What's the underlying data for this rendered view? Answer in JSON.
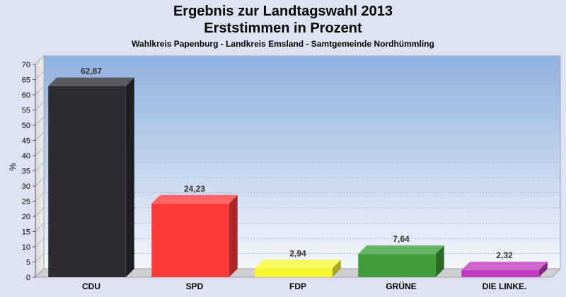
{
  "chart_data": {
    "type": "bar",
    "title": "Ergebnis zur Landtagswahl 2013",
    "subtitle": "Erststimmen in Prozent",
    "subsubtitle": "Wahlkreis Papenburg - Landkreis Emsland - Samtgemeinde Nordhümmling",
    "ylabel": "%",
    "xlabel": "",
    "ylim": [
      0,
      70
    ],
    "yticks": [
      0,
      5,
      10,
      15,
      20,
      25,
      30,
      35,
      40,
      45,
      50,
      55,
      60,
      65,
      70
    ],
    "grid": true,
    "categories": [
      "CDU",
      "SPD",
      "FDP",
      "GRÜNE",
      "DIE LINKE."
    ],
    "values": [
      62.87,
      24.23,
      2.94,
      7.64,
      2.32
    ],
    "value_labels": [
      "62,87",
      "24,23",
      "2,94",
      "7,64",
      "2,32"
    ],
    "colors": [
      "#2b2d33",
      "#ff3a3a",
      "#f5f530",
      "#3e9e3a",
      "#c23ac2"
    ]
  }
}
